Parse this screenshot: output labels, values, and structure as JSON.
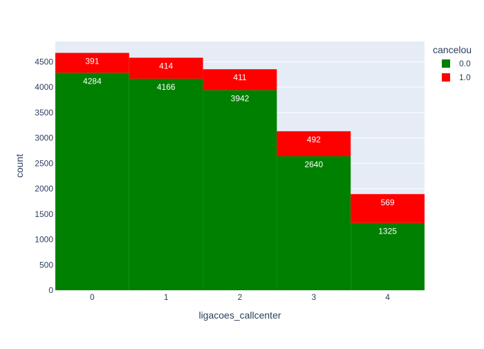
{
  "chart_data": {
    "type": "bar",
    "barmode": "stack",
    "xlabel": "ligacoes_callcenter",
    "ylabel": "count",
    "categories": [
      "0",
      "1",
      "2",
      "3",
      "4"
    ],
    "ylim": [
      0,
      4900
    ],
    "yticks": [
      0,
      500,
      1000,
      1500,
      2000,
      2500,
      3000,
      3500,
      4000,
      4500
    ],
    "grid": true,
    "legend": {
      "title": "cancelou",
      "position": "top-right"
    },
    "series": [
      {
        "name": "0.0",
        "color": "#008000",
        "values": [
          4284,
          4166,
          3942,
          2640,
          1325
        ]
      },
      {
        "name": "1.0",
        "color": "#ff0000",
        "values": [
          391,
          414,
          411,
          492,
          569
        ]
      }
    ]
  },
  "colors": {
    "plot_background": "#e5ecf6",
    "gridline": "#ffffff",
    "tick_text": "#2a3f5f",
    "data_label": "#ffffff"
  }
}
